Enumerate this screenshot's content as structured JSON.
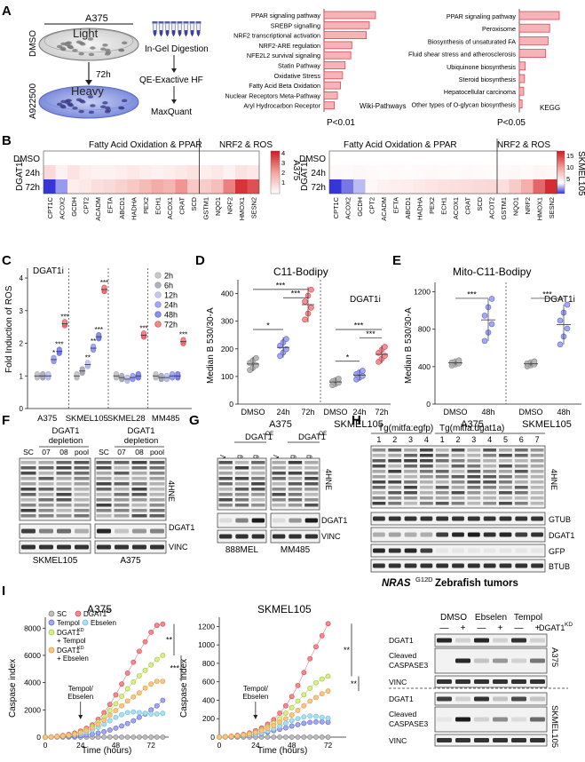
{
  "panel_labels": [
    "A",
    "B",
    "C",
    "D",
    "E",
    "F",
    "G",
    "H",
    "I"
  ],
  "panel_a": {
    "cell_line": "A375",
    "conditions": [
      "DMSO",
      "A922500"
    ],
    "labels": [
      "Light",
      "Heavy"
    ],
    "time": "72h",
    "workflow": [
      "In-Gel Digestion",
      "QE-Exactive HF",
      "MaxQuant"
    ]
  },
  "colors": {
    "bar": "#f6b3b8",
    "bar_edge": "#d84a55",
    "red": "#e0424a",
    "blue": "#5c63d8",
    "gray": "#a9a9a9"
  },
  "chart_data": [
    {
      "type": "bar",
      "orientation": "horizontal",
      "categories": [
        "PPAR signaling pathway",
        "SREBP signalling",
        "NRF2 transcriptional activation",
        "NRF2-ARE regulation",
        "NFE2L2 survival signaling",
        "Statin Pathway",
        "Oxidative Stress",
        "Fatty Acid Beta Oxidation",
        "Nuclear Receptors Meta-Pathway",
        "Aryl Hydrocarbon Receptor"
      ],
      "values": [
        10,
        8.8,
        8.2,
        5.4,
        5.2,
        4.1,
        3.6,
        3.2,
        2.6,
        2.0
      ],
      "legend": "Wiki-Pathways",
      "xlabel": "P<0.01"
    },
    {
      "type": "bar",
      "orientation": "horizontal",
      "categories": [
        "PPAR signaling pathway",
        "Peroxisome",
        "Biosynthesis of unsaturated FA",
        "Fluid shear stress and atherosclerosis",
        "Ubiquinone  biosynthesis",
        "Steroid biosynthesis",
        "Hepatocellular carcinoma",
        "Other types of O-glycan biosynthesis"
      ],
      "values": [
        10,
        7.6,
        7.2,
        6.6,
        1.5,
        1.3,
        1.1,
        0.7
      ],
      "legend": "KEGG",
      "xlabel": "P<0.05"
    },
    {
      "type": "heatmap",
      "cell_line": "A375",
      "treatment": "DGAT1i",
      "rows": [
        "DMSO",
        "24h",
        "72h"
      ],
      "groups": [
        "Fatty Acid Oxidation & PPAR",
        "NRF2 & ROS"
      ],
      "columns": [
        "CPT1C",
        "ACOX2",
        "GCDH",
        "CPT2",
        "ACADM",
        "EFTA",
        "ABCD1",
        "HADHA",
        "PEX2",
        "ECH1",
        "ACOX1",
        "CRAT",
        "SCD",
        "GSTM1",
        "NQO1",
        "NRF2",
        "HMOX1",
        "SESN2"
      ],
      "values": [
        [
          0,
          0,
          0,
          0,
          0,
          0,
          0,
          0,
          0,
          0,
          0,
          0,
          0,
          0,
          0,
          0,
          0,
          0
        ],
        [
          0.8,
          0.3,
          0.6,
          0.4,
          0.3,
          0.3,
          0.4,
          0.5,
          0.4,
          0.3,
          0.4,
          0.5,
          0.6,
          0.4,
          0.5,
          0.3,
          0.6,
          0.5
        ],
        [
          -4,
          -2,
          0.4,
          0.5,
          0.7,
          0.8,
          1,
          1.2,
          1.5,
          1.8,
          1.6,
          2.2,
          1.2,
          1.1,
          1.4,
          2.5,
          3.6,
          3.2
        ]
      ],
      "scale_ticks": [
        "4",
        "3",
        "2",
        "1"
      ]
    },
    {
      "type": "heatmap",
      "cell_line": "SKMEL105",
      "treatment": "DGAT1i",
      "rows": [
        "DMSO",
        "24h",
        "72h"
      ],
      "groups": [
        "Fatty Acid Oxidation & PPAR",
        "NRF2 & ROS"
      ],
      "columns": [
        "CPT1C",
        "ACOX2",
        "GCDH",
        "CPT2",
        "ACADM",
        "EFTA",
        "ABCD1",
        "HADHA",
        "PEX2",
        "ECH1",
        "ACOX1",
        "CRAT",
        "SCD",
        "ACOT2",
        "GSTM1",
        "NQO1",
        "NRF2",
        "HMOX1",
        "SESN2"
      ],
      "values": [
        [
          0,
          0,
          0,
          0,
          0,
          0,
          0,
          0,
          0,
          0,
          0,
          0,
          0,
          0,
          0,
          0,
          0,
          0,
          0
        ],
        [
          0.5,
          0.4,
          0.6,
          0.4,
          0.3,
          0.4,
          0.3,
          0.4,
          0.5,
          0.4,
          0.3,
          0.5,
          0.4,
          0.3,
          0.5,
          0.6,
          0.4,
          0.7,
          0.6
        ],
        [
          -3,
          -2,
          -1,
          0.6,
          1,
          1.2,
          1.4,
          1.6,
          2,
          2.2,
          2.4,
          2.6,
          2.8,
          3,
          2.5,
          4,
          6,
          10,
          13
        ]
      ],
      "scale_ticks": [
        "15",
        "10",
        "5"
      ]
    },
    {
      "type": "scatter",
      "ylabel": "Fold Induction of ROS",
      "treatment": "DGAT1i",
      "yticks": [
        "0",
        "1",
        "2",
        "3",
        "4"
      ],
      "legend": [
        "2h",
        "6h",
        "12h",
        "24h",
        "48h",
        "72h"
      ],
      "groups": [
        "A375",
        "SKMEL105",
        "SKMEL28",
        "MM485"
      ],
      "means": [
        [
          1.0,
          1.0,
          1.0,
          1.5,
          1.75,
          2.6
        ],
        [
          1.0,
          1.15,
          1.35,
          1.85,
          2.2,
          3.65
        ],
        [
          1.0,
          0.95,
          0.9,
          0.95,
          1.0,
          2.25
        ],
        [
          1.0,
          0.95,
          0.95,
          1.0,
          1.0,
          2.05
        ]
      ],
      "significance": [
        [
          "",
          "",
          "",
          "*",
          "***",
          "***"
        ],
        [
          "",
          "",
          "**",
          "**",
          "***",
          "***"
        ],
        [
          "",
          "",
          "",
          "",
          "",
          "***"
        ],
        [
          "",
          "",
          "",
          "",
          "",
          "***"
        ]
      ]
    },
    {
      "type": "scatter",
      "title": "C11-Bodipy",
      "ylabel": "Median B 530/30-A",
      "treatment": "DGAT1i",
      "yticks": [
        "0",
        "100",
        "200",
        "300",
        "400"
      ],
      "groups": [
        "A375",
        "SKMEL105"
      ],
      "categories": [
        "DMSO",
        "24h",
        "72h",
        "DMSO",
        "24h",
        "72h"
      ],
      "means": [
        145,
        205,
        360,
        80,
        105,
        180
      ],
      "significance": [
        "*",
        "***",
        "***",
        "*",
        "***",
        "***"
      ]
    },
    {
      "type": "scatter",
      "title": "Mito-C11-Bodipy",
      "ylabel": "Median B 530/30-A",
      "treatment": "DGAT1i",
      "yticks": [
        "0",
        "400",
        "800",
        "1200"
      ],
      "groups": [
        "A375",
        "SKMEL105"
      ],
      "categories": [
        "DMSO",
        "48h",
        "DMSO",
        "48h"
      ],
      "means": [
        440,
        900,
        430,
        850
      ],
      "significance": [
        "***",
        "***"
      ]
    },
    {
      "type": "line",
      "title": "A375",
      "ylabel": "Caspase index",
      "xlabel": "Time (hours)",
      "xticks": [
        "0",
        "24",
        "48",
        "72"
      ],
      "yticks": [
        "0",
        "2000",
        "4000",
        "6000",
        "8000"
      ],
      "x": [
        0,
        4,
        8,
        12,
        16,
        20,
        24,
        28,
        32,
        36,
        40,
        44,
        48,
        52,
        56,
        60,
        64,
        68,
        72,
        76,
        80
      ],
      "series": [
        {
          "name": "SC",
          "values": [
            0,
            0,
            0,
            0,
            0,
            0,
            0,
            0,
            0,
            0,
            0,
            0,
            0,
            0,
            0,
            0,
            0,
            0,
            0,
            0,
            0
          ]
        },
        {
          "name": "DGAT1KD",
          "values": [
            0,
            20,
            60,
            120,
            200,
            300,
            450,
            650,
            900,
            1300,
            1800,
            2400,
            3100,
            3900,
            4700,
            5500,
            6300,
            7000,
            7700,
            8200,
            8300
          ]
        },
        {
          "name": "Tempol",
          "values": [
            0,
            10,
            20,
            40,
            60,
            80,
            120,
            160,
            220,
            300,
            400,
            520,
            660,
            820,
            1000,
            1200,
            1450,
            1700,
            2000,
            2300,
            2700
          ]
        },
        {
          "name": "Ebselen",
          "values": [
            0,
            10,
            30,
            60,
            100,
            160,
            240,
            360,
            520,
            720,
            950,
            1200,
            1450,
            1650,
            1800,
            1850,
            1800,
            1750,
            1700,
            1700,
            1750
          ]
        },
        {
          "name": "DGAT1KD + Tempol",
          "values": [
            0,
            15,
            40,
            90,
            160,
            250,
            380,
            550,
            780,
            1100,
            1500,
            1950,
            2450,
            3000,
            3550,
            4050,
            4500,
            4900,
            5300,
            5700,
            6000
          ]
        },
        {
          "name": "DGAT1KD + Ebselen",
          "values": [
            0,
            15,
            40,
            80,
            140,
            220,
            330,
            480,
            680,
            950,
            1250,
            1600,
            1950,
            2300,
            2650,
            2950,
            3250,
            3600,
            3900,
            4100,
            4100
          ]
        }
      ],
      "significance": [
        "**",
        "***"
      ],
      "annotation": "Tempol/ Ebselen"
    },
    {
      "type": "line",
      "title": "SKMEL105",
      "ylabel": "Caspase index",
      "xlabel": "Time (hours)",
      "xticks": [
        "0",
        "24",
        "48",
        "72"
      ],
      "yticks": [
        "0",
        "200",
        "400",
        "600",
        "800",
        "1000",
        "1200"
      ],
      "x": [
        0,
        4,
        8,
        12,
        16,
        20,
        24,
        28,
        32,
        36,
        40,
        44,
        48,
        52,
        56,
        60,
        64,
        68,
        72
      ],
      "series": [
        {
          "name": "SC",
          "values": [
            0,
            0,
            0,
            0,
            0,
            0,
            0,
            0,
            0,
            0,
            0,
            0,
            0,
            0,
            0,
            0,
            0,
            0,
            0
          ]
        },
        {
          "name": "DGAT1KD",
          "values": [
            0,
            5,
            10,
            20,
            30,
            45,
            70,
            100,
            140,
            190,
            260,
            340,
            440,
            560,
            700,
            850,
            980,
            1100,
            1230
          ]
        },
        {
          "name": "Tempol",
          "values": [
            0,
            3,
            6,
            10,
            15,
            20,
            30,
            40,
            55,
            70,
            85,
            100,
            120,
            135,
            150,
            160,
            165,
            165,
            160
          ]
        },
        {
          "name": "Ebselen",
          "values": [
            0,
            3,
            6,
            10,
            15,
            22,
            32,
            45,
            65,
            90,
            120,
            150,
            180,
            200,
            220,
            230,
            225,
            215,
            205
          ]
        },
        {
          "name": "DGAT1KD + Tempol",
          "values": [
            0,
            4,
            8,
            15,
            25,
            38,
            55,
            80,
            110,
            150,
            200,
            260,
            320,
            390,
            460,
            530,
            590,
            630,
            660
          ]
        },
        {
          "name": "DGAT1KD + Ebselen",
          "values": [
            0,
            4,
            8,
            15,
            24,
            35,
            50,
            70,
            95,
            125,
            160,
            200,
            240,
            290,
            340,
            390,
            430,
            470,
            500
          ]
        }
      ],
      "significance": [
        "**",
        "**"
      ],
      "annotation": "Tempol/ Ebselen"
    }
  ],
  "panel_f": {
    "title": "DGAT1 depletion",
    "lanes": [
      "SC",
      "07",
      "08",
      "pool"
    ],
    "lines": [
      "SKMEL105",
      "A375"
    ],
    "proteins": [
      "4HNE",
      "DGAT1",
      "VINC"
    ]
  },
  "panel_g": {
    "lanes": [
      "EV",
      "250ng",
      "500ng"
    ],
    "construct": "DGAT1",
    "construct_sup": "OE",
    "lines": [
      "888MEL",
      "MM485"
    ],
    "proteins": [
      "4HNE",
      "DGAT1",
      "VINC"
    ]
  },
  "panel_h": {
    "groups": [
      "Tg(mitfa:egfp)",
      "Tg(mitfa:dgat1a)"
    ],
    "lanes_egfp": [
      "1",
      "2",
      "3",
      "4"
    ],
    "lanes_dgat1a": [
      "1",
      "2",
      "3",
      "4",
      "5",
      "6",
      "7"
    ],
    "proteins": [
      "4HNE",
      "GTUB",
      "DGAT1",
      "GFP",
      "BTUB"
    ],
    "caption": "NRAS",
    "caption_sup": "G12D",
    "caption_rest": " Zebrafish tumors"
  },
  "panel_i_blot": {
    "conditions": [
      "DMSO",
      "Ebselen",
      "Tempol"
    ],
    "marks": [
      "—",
      "+",
      "—",
      "+",
      "—",
      "+"
    ],
    "kd": "DGAT1",
    "kd_sup": "KD",
    "proteins": [
      "DGAT1",
      "Cleaved CASPASE3",
      "VINC"
    ],
    "lines": [
      "A375",
      "SKMEL105"
    ]
  },
  "legend_i": [
    "SC",
    "DGAT1",
    "Tempol",
    "Ebselen",
    "DGAT1",
    "+ Tempol",
    "DGAT1",
    "+ Ebselen"
  ],
  "legend_i_sup": "KD"
}
